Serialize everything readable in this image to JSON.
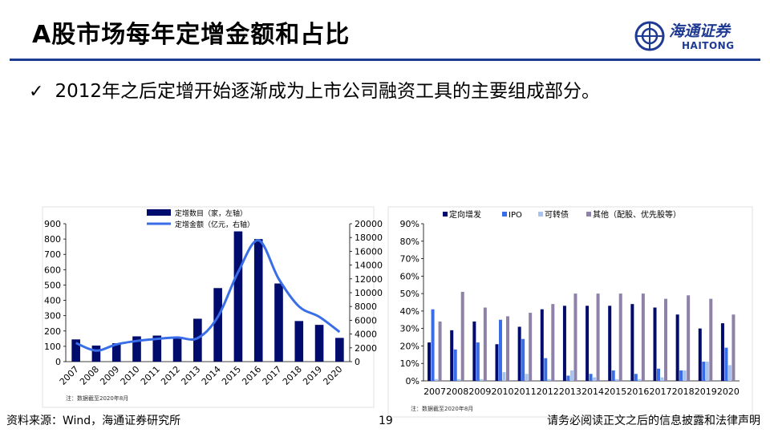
{
  "header": {
    "title": "A股市场每年定增金额和占比",
    "logo_cn": "海通证券",
    "logo_en": "HAITONG"
  },
  "bullet": {
    "text": "2012年之后定增开始逐渐成为上市公司融资工具的主要组成部分。"
  },
  "chart_data": [
    {
      "type": "bar",
      "categories": [
        "2007",
        "2008",
        "2009",
        "2010",
        "2011",
        "2012",
        "2013",
        "2014",
        "2015",
        "2016",
        "2017",
        "2018",
        "2019",
        "2020"
      ],
      "series": [
        {
          "name": "定增数目（家，左轴）",
          "type": "bar",
          "axis": "left",
          "values": [
            145,
            105,
            120,
            165,
            170,
            160,
            280,
            480,
            850,
            800,
            510,
            265,
            240,
            155
          ]
        },
        {
          "name": "定增金额（亿元，右轴）",
          "type": "line",
          "axis": "right",
          "values": [
            2700,
            1600,
            2500,
            3000,
            3300,
            3500,
            3400,
            6500,
            13000,
            17600,
            12000,
            8000,
            6500,
            4300
          ]
        }
      ],
      "left_ticks": [
        "0",
        "100",
        "200",
        "300",
        "400",
        "500",
        "600",
        "700",
        "800",
        "900"
      ],
      "right_ticks": [
        "0",
        "2000",
        "4000",
        "6000",
        "8000",
        "10000",
        "12000",
        "14000",
        "16000",
        "18000",
        "20000"
      ],
      "ylim_left": [
        0,
        900
      ],
      "ylim_right": [
        0,
        20000
      ],
      "colors": {
        "bar": "#000b6e",
        "line": "#3a6ee8"
      },
      "note": "注：数据截至2020年8月"
    },
    {
      "type": "bar",
      "categories": [
        "2007",
        "2008",
        "2009",
        "2010",
        "2011",
        "2012",
        "2013",
        "2014",
        "2015",
        "2016",
        "2017",
        "2018",
        "2019",
        "2020"
      ],
      "series": [
        {
          "name": "定向增发",
          "color": "#000b6e",
          "values": [
            22,
            29,
            34,
            21,
            31,
            41,
            43,
            43,
            43,
            44,
            42,
            38,
            30,
            33
          ]
        },
        {
          "name": "IPO",
          "color": "#3a6ee8",
          "values": [
            41,
            18,
            22,
            35,
            24,
            13,
            3,
            4,
            6,
            4,
            7,
            6,
            11,
            19
          ]
        },
        {
          "name": "可转债",
          "color": "#a8c4ee",
          "values": [
            1,
            1,
            1,
            5,
            4,
            1,
            6,
            2,
            1,
            1,
            2,
            6,
            11,
            9
          ]
        },
        {
          "name": "其他（配股、优先股等）",
          "color": "#8e82a8",
          "values": [
            34,
            51,
            42,
            37,
            39,
            44,
            50,
            50,
            50,
            50,
            47,
            49,
            47,
            38
          ]
        }
      ],
      "y_ticks": [
        "0%",
        "10%",
        "20%",
        "30%",
        "40%",
        "50%",
        "60%",
        "70%",
        "80%",
        "90%"
      ],
      "ylim": [
        0,
        90
      ],
      "note": "注：数据截至2020年8月"
    }
  ],
  "footer": {
    "source": "资料来源：Wind，海通证券研究所",
    "page": "19",
    "disclaimer": "请务必阅读正文之后的信息披露和法律声明"
  }
}
